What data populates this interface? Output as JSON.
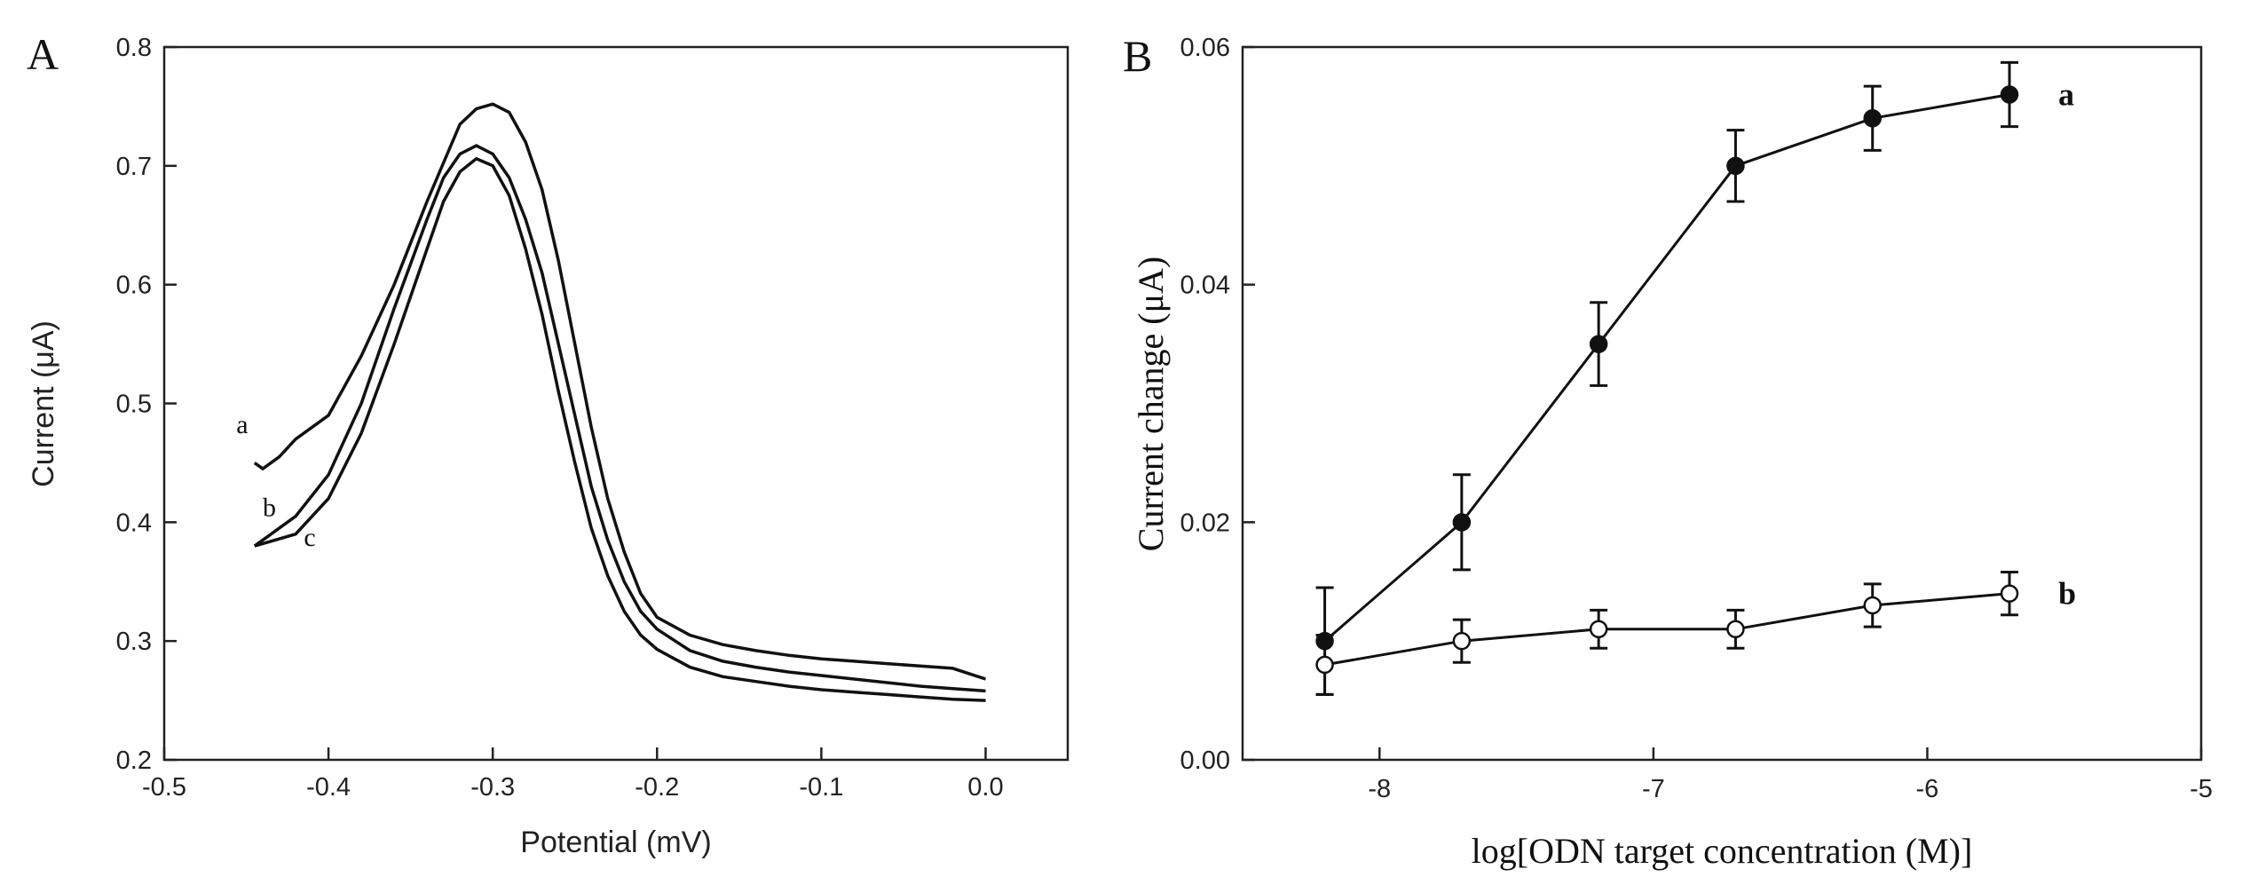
{
  "chart_data": [
    {
      "panel": "A",
      "type": "line",
      "title": "",
      "xlabel": "Potential (mV)",
      "ylabel": "Current (μA)",
      "xlim": [
        -0.5,
        0.05
      ],
      "ylim": [
        0.2,
        0.8
      ],
      "xticks": [
        -0.5,
        -0.4,
        -0.3,
        -0.2,
        -0.1,
        0.0
      ],
      "xtick_labels": [
        "-0.5",
        "-0.4",
        "-0.3",
        "-0.2",
        "-0.1",
        "0.0"
      ],
      "yticks": [
        0.2,
        0.3,
        0.4,
        0.5,
        0.6,
        0.7,
        0.8
      ],
      "ytick_labels": [
        "0.2",
        "0.3",
        "0.4",
        "0.5",
        "0.6",
        "0.7",
        "0.8"
      ],
      "grid": false,
      "series": [
        {
          "name": "a",
          "x": [
            -0.445,
            -0.44,
            -0.43,
            -0.42,
            -0.41,
            -0.4,
            -0.38,
            -0.36,
            -0.34,
            -0.32,
            -0.31,
            -0.3,
            -0.29,
            -0.28,
            -0.27,
            -0.26,
            -0.25,
            -0.24,
            -0.23,
            -0.22,
            -0.21,
            -0.2,
            -0.18,
            -0.16,
            -0.14,
            -0.12,
            -0.1,
            -0.08,
            -0.06,
            -0.04,
            -0.02,
            0.0
          ],
          "y": [
            0.45,
            0.445,
            0.455,
            0.47,
            0.48,
            0.49,
            0.54,
            0.6,
            0.67,
            0.735,
            0.748,
            0.752,
            0.745,
            0.72,
            0.68,
            0.62,
            0.55,
            0.48,
            0.42,
            0.375,
            0.34,
            0.32,
            0.305,
            0.297,
            0.292,
            0.288,
            0.285,
            0.283,
            0.281,
            0.279,
            0.277,
            0.268
          ]
        },
        {
          "name": "b",
          "x": [
            -0.445,
            -0.44,
            -0.42,
            -0.4,
            -0.38,
            -0.36,
            -0.34,
            -0.33,
            -0.32,
            -0.31,
            -0.3,
            -0.29,
            -0.28,
            -0.27,
            -0.26,
            -0.25,
            -0.24,
            -0.23,
            -0.22,
            -0.21,
            -0.2,
            -0.18,
            -0.16,
            -0.14,
            -0.12,
            -0.1,
            -0.08,
            -0.06,
            -0.04,
            -0.02,
            0.0
          ],
          "y": [
            0.38,
            0.385,
            0.405,
            0.44,
            0.5,
            0.58,
            0.655,
            0.69,
            0.71,
            0.717,
            0.71,
            0.69,
            0.655,
            0.61,
            0.55,
            0.49,
            0.43,
            0.385,
            0.35,
            0.325,
            0.31,
            0.292,
            0.283,
            0.278,
            0.274,
            0.271,
            0.268,
            0.265,
            0.262,
            0.26,
            0.258
          ]
        },
        {
          "name": "c",
          "x": [
            -0.445,
            -0.44,
            -0.42,
            -0.4,
            -0.38,
            -0.36,
            -0.34,
            -0.33,
            -0.32,
            -0.31,
            -0.3,
            -0.29,
            -0.28,
            -0.27,
            -0.26,
            -0.25,
            -0.24,
            -0.23,
            -0.22,
            -0.21,
            -0.2,
            -0.18,
            -0.16,
            -0.14,
            -0.12,
            -0.1,
            -0.08,
            -0.06,
            -0.04,
            -0.02,
            0.0
          ],
          "y": [
            0.38,
            0.382,
            0.39,
            0.42,
            0.475,
            0.55,
            0.63,
            0.67,
            0.695,
            0.706,
            0.7,
            0.675,
            0.63,
            0.575,
            0.51,
            0.45,
            0.395,
            0.355,
            0.325,
            0.305,
            0.293,
            0.278,
            0.27,
            0.266,
            0.262,
            0.259,
            0.257,
            0.255,
            0.253,
            0.251,
            0.25
          ]
        }
      ],
      "curve_labels": [
        "a",
        "b",
        "c"
      ]
    },
    {
      "panel": "B",
      "type": "line",
      "title": "",
      "xlabel": "log[ODN target concentration (M)]",
      "ylabel": "Current change (μA)",
      "xlim": [
        -8.5,
        -5
      ],
      "ylim": [
        0,
        0.06
      ],
      "xticks": [
        -8,
        -7,
        -6,
        -5
      ],
      "xtick_labels": [
        "-8",
        "-7",
        "-6",
        "-5"
      ],
      "yticks": [
        0,
        0.02,
        0.04,
        0.06
      ],
      "ytick_labels": [
        "0.00",
        "0.02",
        "0.04",
        "0.06"
      ],
      "grid": false,
      "series": [
        {
          "name": "a",
          "marker": "filled-circle",
          "x": [
            -8.2,
            -7.7,
            -7.2,
            -6.7,
            -6.2,
            -5.7
          ],
          "y": [
            0.01,
            0.02,
            0.035,
            0.05,
            0.054,
            0.056
          ],
          "err": [
            0.0045,
            0.004,
            0.0035,
            0.003,
            0.0027,
            0.0027
          ]
        },
        {
          "name": "b",
          "marker": "open-circle",
          "x": [
            -8.2,
            -7.7,
            -7.2,
            -6.7,
            -6.2,
            -5.7
          ],
          "y": [
            0.008,
            0.01,
            0.011,
            0.011,
            0.013,
            0.014
          ],
          "err": [
            0.0025,
            0.0018,
            0.0016,
            0.0016,
            0.0018,
            0.0018
          ]
        }
      ],
      "series_labels": [
        "a",
        "b"
      ]
    }
  ]
}
